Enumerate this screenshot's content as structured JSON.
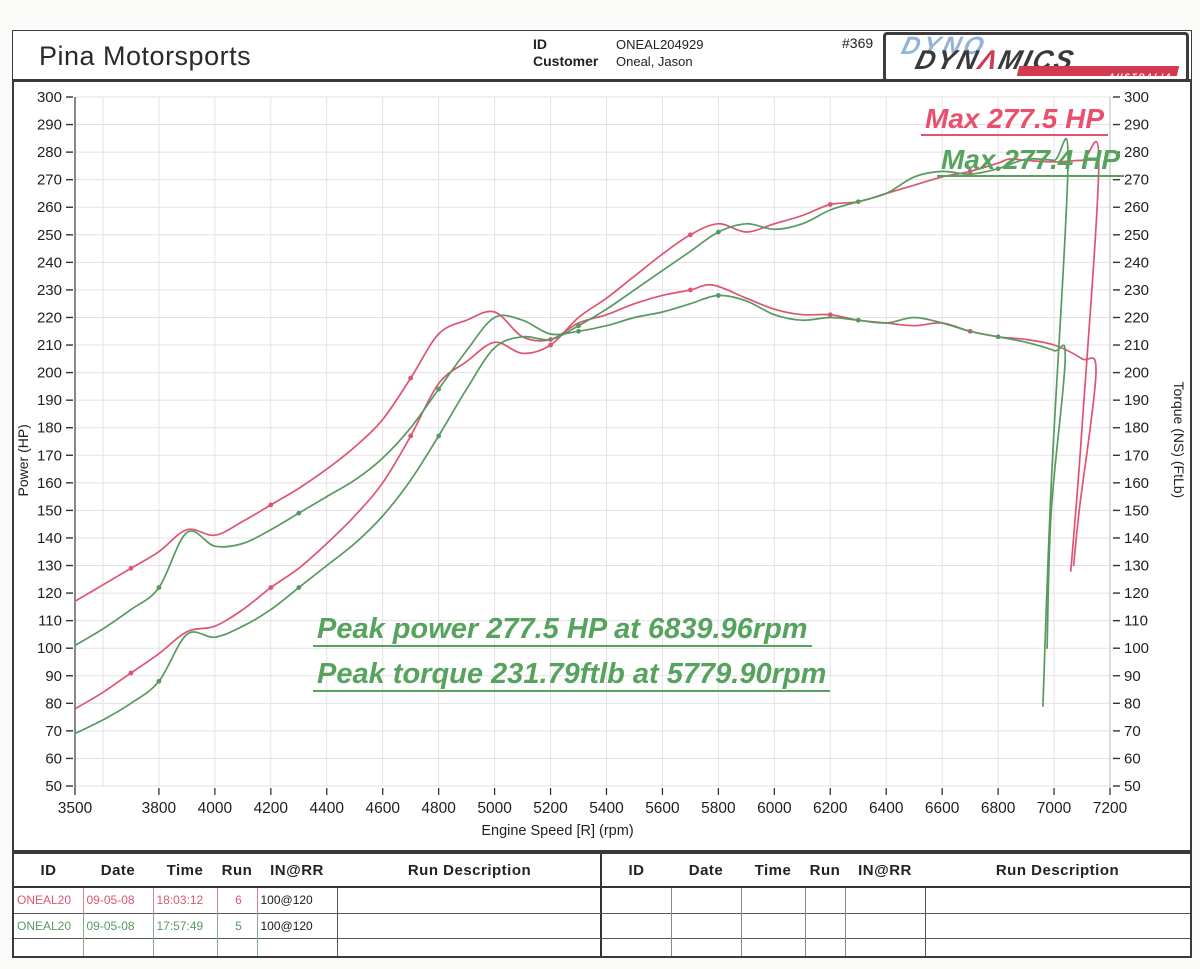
{
  "header": {
    "shop_name": "Pina Motorsports",
    "id_label": "ID",
    "id_value": "ONEAL204929",
    "customer_label": "Customer",
    "customer_value": "Oneal, Jason",
    "sheet_number": "#369",
    "logo": {
      "line1": "DYNO",
      "line2_pre": "DYN",
      "line2_a": "Λ",
      "line2_post": "MICS",
      "country": "AUSTRALIA"
    }
  },
  "colors": {
    "run6_pink": "#dd5572",
    "run5_green": "#579a60",
    "annotation_pink": "#e8516e",
    "annotation_green": "#56a35e",
    "grid": "#e7e0e3",
    "axis": "#555555",
    "table_border_pink": "#cf8396",
    "table_border_green": "#84ad90",
    "table_border_gray": "#888888"
  },
  "chart_data": {
    "type": "line",
    "xlabel": "Engine Speed [R] (rpm)",
    "ylabel_left": "Power (HP)",
    "ylabel_right": "Torque (NS) (FtLb)",
    "xlim": [
      3500,
      7200
    ],
    "ylim": [
      50,
      300
    ],
    "ytick_step": 10,
    "grid": true,
    "xticks": [
      3500,
      3800,
      4000,
      4200,
      4400,
      4600,
      4800,
      5000,
      5200,
      5400,
      5600,
      5800,
      6000,
      6200,
      6400,
      6600,
      6800,
      7000,
      7200
    ],
    "annotations": [
      {
        "id": "max-pink",
        "text": "Max 277.5 HP",
        "color_key": "annotation_pink"
      },
      {
        "id": "max-green",
        "text": "Max 277.4 HP",
        "color_key": "annotation_green"
      },
      {
        "id": "peak-power",
        "text": "Peak power 277.5 HP at 6839.96rpm",
        "color_key": "annotation_green"
      },
      {
        "id": "peak-torque",
        "text": "Peak torque 231.79ftlb at 5779.90rpm",
        "color_key": "annotation_green"
      }
    ],
    "peaks": {
      "run6_max_power_hp": 277.5,
      "run6_max_power_rpm": 6839.96,
      "run6_max_torque_ftlb": 231.79,
      "run6_max_torque_rpm": 5779.9,
      "run5_max_power_hp": 277.4
    },
    "series": [
      {
        "key": "power-run6",
        "run": "6",
        "quantity": "Power (HP)",
        "color_key": "run6_pink",
        "marker_phase": 200,
        "points": [
          [
            3500,
            78
          ],
          [
            3600,
            84
          ],
          [
            3700,
            91
          ],
          [
            3800,
            98
          ],
          [
            3900,
            106
          ],
          [
            4000,
            108
          ],
          [
            4100,
            114
          ],
          [
            4200,
            122
          ],
          [
            4300,
            129
          ],
          [
            4400,
            138
          ],
          [
            4500,
            148
          ],
          [
            4600,
            160
          ],
          [
            4700,
            177
          ],
          [
            4800,
            196
          ],
          [
            4900,
            204
          ],
          [
            5000,
            211
          ],
          [
            5100,
            207
          ],
          [
            5200,
            210
          ],
          [
            5300,
            220
          ],
          [
            5400,
            227
          ],
          [
            5500,
            235
          ],
          [
            5600,
            243
          ],
          [
            5700,
            250
          ],
          [
            5800,
            254
          ],
          [
            5900,
            251
          ],
          [
            6000,
            254
          ],
          [
            6100,
            257
          ],
          [
            6200,
            261
          ],
          [
            6300,
            262
          ],
          [
            6400,
            265
          ],
          [
            6500,
            268
          ],
          [
            6600,
            271
          ],
          [
            6700,
            273
          ],
          [
            6800,
            276
          ],
          [
            6840,
            277.5
          ],
          [
            6900,
            277
          ],
          [
            7000,
            276.5
          ],
          [
            7100,
            277
          ],
          [
            7160,
            276.5
          ],
          [
            7100,
            180
          ],
          [
            7060,
            128
          ]
        ]
      },
      {
        "key": "torque-run6",
        "run": "6",
        "quantity": "Torque (FtLb)",
        "color_key": "run6_pink",
        "marker_phase": 200,
        "points": [
          [
            3500,
            117
          ],
          [
            3600,
            123
          ],
          [
            3700,
            129
          ],
          [
            3800,
            135
          ],
          [
            3900,
            143
          ],
          [
            4000,
            141
          ],
          [
            4100,
            146
          ],
          [
            4200,
            152
          ],
          [
            4300,
            158
          ],
          [
            4400,
            165
          ],
          [
            4500,
            173
          ],
          [
            4600,
            183
          ],
          [
            4700,
            198
          ],
          [
            4800,
            214
          ],
          [
            4900,
            219
          ],
          [
            5000,
            222
          ],
          [
            5100,
            213
          ],
          [
            5200,
            212
          ],
          [
            5300,
            218
          ],
          [
            5400,
            221
          ],
          [
            5500,
            225
          ],
          [
            5600,
            228
          ],
          [
            5700,
            230
          ],
          [
            5780,
            231.79
          ],
          [
            5900,
            227
          ],
          [
            6000,
            223
          ],
          [
            6100,
            221
          ],
          [
            6200,
            221
          ],
          [
            6300,
            219
          ],
          [
            6400,
            218
          ],
          [
            6500,
            217
          ],
          [
            6600,
            218
          ],
          [
            6700,
            215
          ],
          [
            6800,
            213
          ],
          [
            6900,
            212
          ],
          [
            7000,
            210
          ],
          [
            7100,
            205
          ],
          [
            7150,
            200
          ],
          [
            7090,
            150
          ],
          [
            7070,
            130
          ]
        ]
      },
      {
        "key": "power-run5",
        "run": "5",
        "quantity": "Power (HP)",
        "color_key": "run5_green",
        "marker_phase": 300,
        "points": [
          [
            3500,
            69
          ],
          [
            3600,
            74
          ],
          [
            3700,
            80
          ],
          [
            3800,
            88
          ],
          [
            3900,
            105
          ],
          [
            4000,
            104
          ],
          [
            4100,
            108
          ],
          [
            4200,
            114
          ],
          [
            4300,
            122
          ],
          [
            4400,
            130
          ],
          [
            4500,
            138
          ],
          [
            4600,
            148
          ],
          [
            4700,
            161
          ],
          [
            4800,
            177
          ],
          [
            4900,
            194
          ],
          [
            5000,
            209
          ],
          [
            5100,
            213
          ],
          [
            5200,
            212
          ],
          [
            5300,
            217
          ],
          [
            5400,
            223
          ],
          [
            5500,
            230
          ],
          [
            5600,
            237
          ],
          [
            5700,
            244
          ],
          [
            5800,
            251
          ],
          [
            5900,
            254
          ],
          [
            6000,
            252
          ],
          [
            6100,
            254
          ],
          [
            6200,
            259
          ],
          [
            6300,
            262
          ],
          [
            6400,
            265
          ],
          [
            6500,
            271
          ],
          [
            6600,
            273
          ],
          [
            6700,
            272
          ],
          [
            6800,
            274
          ],
          [
            6900,
            277.4
          ],
          [
            7000,
            277
          ],
          [
            7050,
            276
          ],
          [
            6990,
            160
          ],
          [
            6960,
            79
          ]
        ]
      },
      {
        "key": "torque-run5",
        "run": "5",
        "quantity": "Torque (FtLb)",
        "color_key": "run5_green",
        "marker_phase": 300,
        "points": [
          [
            3500,
            101
          ],
          [
            3600,
            107
          ],
          [
            3700,
            114
          ],
          [
            3800,
            122
          ],
          [
            3900,
            142
          ],
          [
            4000,
            137
          ],
          [
            4100,
            138
          ],
          [
            4200,
            143
          ],
          [
            4300,
            149
          ],
          [
            4400,
            155
          ],
          [
            4500,
            161
          ],
          [
            4600,
            169
          ],
          [
            4700,
            180
          ],
          [
            4800,
            194
          ],
          [
            4900,
            208
          ],
          [
            5000,
            220
          ],
          [
            5100,
            219
          ],
          [
            5200,
            214
          ],
          [
            5300,
            215
          ],
          [
            5400,
            217
          ],
          [
            5500,
            220
          ],
          [
            5600,
            222
          ],
          [
            5700,
            225
          ],
          [
            5800,
            228
          ],
          [
            5900,
            226
          ],
          [
            6000,
            221
          ],
          [
            6100,
            219
          ],
          [
            6200,
            220
          ],
          [
            6300,
            219
          ],
          [
            6400,
            218
          ],
          [
            6500,
            220
          ],
          [
            6600,
            218
          ],
          [
            6700,
            215
          ],
          [
            6800,
            213
          ],
          [
            6900,
            211
          ],
          [
            7000,
            208
          ],
          [
            7040,
            205
          ],
          [
            6990,
            150
          ],
          [
            6975,
            100
          ]
        ]
      }
    ]
  },
  "table": {
    "headers": [
      "ID",
      "Date",
      "Time",
      "Run",
      "IN@RR",
      "Run Description"
    ],
    "left_rows": [
      {
        "id": "ONEAL20",
        "date": "09-05-08",
        "time": "18:03:12",
        "run": "6",
        "in_rr": "100@120",
        "description": "",
        "color_key": "run6_pink",
        "border_key": "table_border_pink"
      },
      {
        "id": "ONEAL20",
        "date": "09-05-08",
        "time": "17:57:49",
        "run": "5",
        "in_rr": "100@120",
        "description": "",
        "color_key": "run5_green",
        "border_key": "table_border_green"
      },
      {
        "id": "",
        "date": "",
        "time": "",
        "run": "",
        "in_rr": "",
        "description": "",
        "color_key": "run5_green",
        "border_key": "table_border_green"
      }
    ],
    "right_rows": [
      {
        "id": "",
        "date": "",
        "time": "",
        "run": "",
        "in_rr": "",
        "description": "",
        "color_key": "run5_green",
        "border_key": "table_border_gray"
      },
      {
        "id": "",
        "date": "",
        "time": "",
        "run": "",
        "in_rr": "",
        "description": "",
        "color_key": "run5_green",
        "border_key": "table_border_gray"
      },
      {
        "id": "",
        "date": "",
        "time": "",
        "run": "",
        "in_rr": "",
        "description": "",
        "color_key": "run5_green",
        "border_key": "table_border_gray"
      }
    ]
  }
}
